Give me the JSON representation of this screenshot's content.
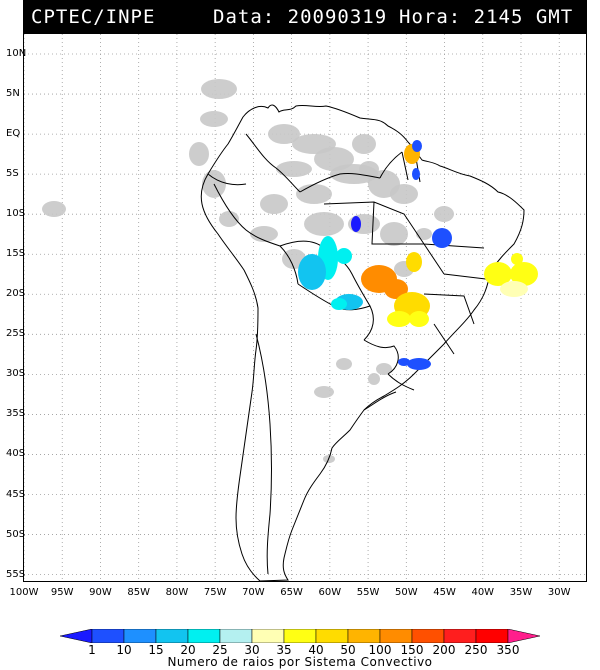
{
  "header": {
    "source": "CPTEC/INPE",
    "date_text": "Data: 20090319",
    "time_text": "Hora: 2145 GMT"
  },
  "map": {
    "region": "South America",
    "lat_labels": [
      "10N",
      "5N",
      "EQ",
      "5S",
      "10S",
      "15S",
      "20S",
      "25S",
      "30S",
      "35S",
      "40S",
      "45S",
      "50S",
      "55S"
    ],
    "lat_values": [
      10,
      5,
      0,
      -5,
      -10,
      -15,
      -20,
      -25,
      -30,
      -35,
      -40,
      -45,
      -50,
      -55
    ],
    "lon_labels": [
      "100W",
      "95W",
      "90W",
      "85W",
      "80W",
      "75W",
      "70W",
      "65W",
      "60W",
      "55W",
      "50W",
      "45W",
      "40W",
      "35W",
      "30W"
    ],
    "lon_values": [
      -100,
      -95,
      -90,
      -85,
      -80,
      -75,
      -70,
      -65,
      -60,
      -55,
      -50,
      -45,
      -40,
      -35,
      -30
    ],
    "lon_range": [
      -100,
      -26.5
    ],
    "lat_range": [
      -55.8,
      12.5
    ],
    "grid": "dotted",
    "colors": {
      "cloud_gray": "#c8c8c8",
      "coast": "#000000"
    }
  },
  "colorbar": {
    "labels": [
      "1",
      "10",
      "15",
      "20",
      "25",
      "30",
      "35",
      "40",
      "50",
      "100",
      "150",
      "200",
      "250",
      "350"
    ],
    "colors": [
      "#1a1aff",
      "#1e50ff",
      "#1e90ff",
      "#12c4f0",
      "#00f0f0",
      "#b4f0f0",
      "#ffffb4",
      "#ffff14",
      "#ffdc00",
      "#ffb400",
      "#ff8c00",
      "#ff5000",
      "#ff1e1e",
      "#ff0000",
      "#ff1e8c"
    ],
    "title": "Numero de raios por Sistema Convectivo"
  }
}
